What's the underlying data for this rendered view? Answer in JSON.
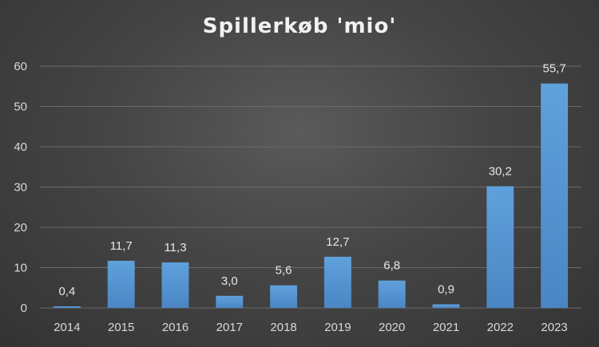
{
  "chart_data": {
    "type": "bar",
    "title": "Spillerkøb 'mio'",
    "categories": [
      "2014",
      "2015",
      "2016",
      "2017",
      "2018",
      "2019",
      "2020",
      "2021",
      "2022",
      "2023"
    ],
    "values": [
      0.4,
      11.7,
      11.3,
      3.0,
      5.6,
      12.7,
      6.8,
      0.9,
      30.2,
      55.7
    ],
    "data_labels": [
      "0,4",
      "11,7",
      "11,3",
      "3,0",
      "5,6",
      "12,7",
      "6,8",
      "0,9",
      "30,2",
      "55,7"
    ],
    "y_ticks": [
      "0",
      "10",
      "20",
      "30",
      "40",
      "50",
      "60"
    ],
    "xlabel": "",
    "ylabel": "",
    "ylim": [
      0,
      60
    ],
    "grid": true,
    "bar_color": "#5b9bd5",
    "grid_color": "#6a6a6a",
    "text_color": "#d9d9d9"
  }
}
